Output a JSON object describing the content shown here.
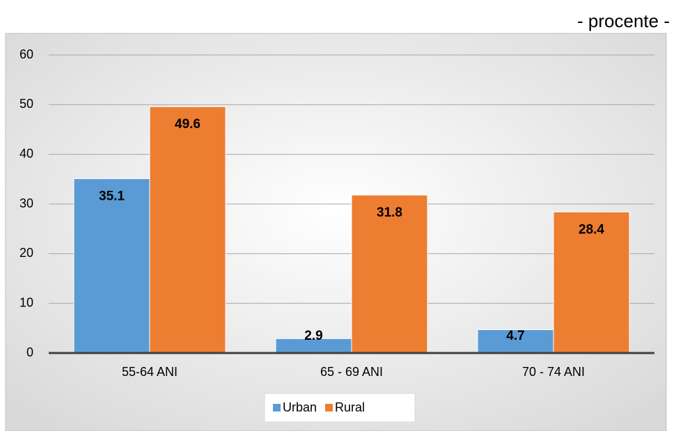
{
  "chart_data": {
    "type": "bar",
    "subtitle": "- procente -",
    "categories": [
      "55-64 ANI",
      "65 - 69 ANI",
      "70 - 74 ANI"
    ],
    "series": [
      {
        "name": "Urban",
        "color": "#5b9bd5",
        "values": [
          35.1,
          2.9,
          4.7
        ]
      },
      {
        "name": "Rural",
        "color": "#ed7d31",
        "values": [
          49.6,
          31.8,
          28.4
        ]
      }
    ],
    "ylim": [
      0,
      60
    ],
    "yticks": [
      0,
      10,
      20,
      30,
      40,
      50,
      60
    ],
    "grid": true,
    "legend": "bottom"
  }
}
